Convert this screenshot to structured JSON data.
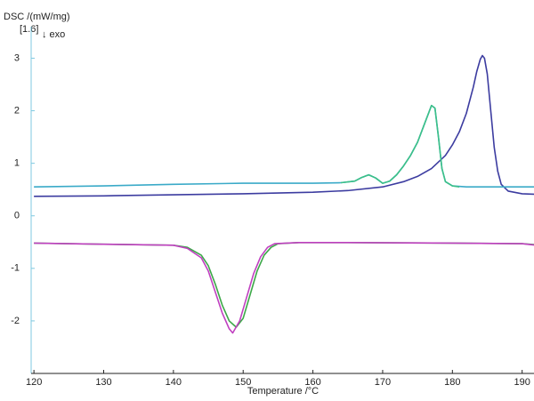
{
  "chart_data": {
    "type": "line",
    "y_label": "DSC /(mW/mg)",
    "x_label": "Temperature /°C",
    "annotations": [
      "[1.6]",
      "↓ exo"
    ],
    "xlim": [
      119.6,
      191.7
    ],
    "ylim": [
      -3,
      3.6
    ],
    "xticks": [
      120,
      130,
      140,
      150,
      160,
      170,
      180,
      190
    ],
    "yticks": [
      -2,
      -1,
      0,
      1,
      2,
      3
    ],
    "series": [
      {
        "color": "#3c3ca0",
        "x": [
          120,
          130,
          140,
          150,
          160,
          165,
          170,
          173,
          175,
          177,
          179,
          180,
          181,
          182,
          183,
          183.5,
          184,
          184.3,
          184.6,
          185,
          185.5,
          186,
          186.5,
          187,
          188,
          190,
          192
        ],
        "values": [
          0.37,
          0.38,
          0.4,
          0.42,
          0.45,
          0.48,
          0.55,
          0.65,
          0.75,
          0.9,
          1.15,
          1.35,
          1.6,
          1.95,
          2.45,
          2.75,
          2.98,
          3.05,
          3.0,
          2.7,
          2.0,
          1.3,
          0.85,
          0.6,
          0.47,
          0.42,
          0.41
        ]
      },
      {
        "color": "#3aaac8",
        "x": [
          120,
          130,
          140,
          150,
          160,
          164,
          166,
          167,
          168,
          169,
          170,
          171,
          172,
          173,
          174,
          175,
          176,
          177,
          177.5,
          178,
          178.5,
          179,
          180,
          182,
          192
        ],
        "values": [
          0.55,
          0.57,
          0.6,
          0.62,
          0.62,
          0.63,
          0.66,
          0.73,
          0.78,
          0.72,
          0.62,
          0.66,
          0.78,
          0.95,
          1.15,
          1.4,
          1.75,
          2.1,
          2.05,
          1.5,
          0.9,
          0.65,
          0.57,
          0.55,
          0.55
        ]
      },
      {
        "color": "#3cc088",
        "x": [
          164,
          166,
          167,
          168,
          169,
          170,
          171,
          172,
          173,
          174,
          175,
          176,
          177,
          177.5,
          178,
          178.5,
          179,
          180,
          181
        ],
        "values": [
          0.63,
          0.66,
          0.73,
          0.78,
          0.72,
          0.62,
          0.66,
          0.78,
          0.95,
          1.15,
          1.4,
          1.75,
          2.1,
          2.05,
          1.5,
          0.9,
          0.65,
          0.57,
          0.55
        ]
      },
      {
        "color": "#3ca848",
        "x": [
          120,
          130,
          140,
          142,
          144,
          145,
          146,
          147,
          148,
          149,
          150,
          151,
          152,
          153,
          154,
          155,
          158,
          165,
          180,
          190,
          192
        ],
        "values": [
          -0.52,
          -0.54,
          -0.56,
          -0.6,
          -0.75,
          -0.95,
          -1.3,
          -1.7,
          -2.0,
          -2.12,
          -1.95,
          -1.5,
          -1.05,
          -0.75,
          -0.6,
          -0.53,
          -0.51,
          -0.51,
          -0.52,
          -0.53,
          -0.55
        ]
      },
      {
        "color": "#c040c0",
        "x": [
          120,
          130,
          140,
          142,
          144,
          145,
          146,
          147,
          148,
          148.5,
          149.5,
          150.5,
          151.5,
          152.5,
          153.5,
          154.5,
          158,
          165,
          180,
          190,
          192
        ],
        "values": [
          -0.52,
          -0.54,
          -0.56,
          -0.62,
          -0.8,
          -1.05,
          -1.45,
          -1.85,
          -2.15,
          -2.23,
          -2.0,
          -1.55,
          -1.1,
          -0.78,
          -0.6,
          -0.53,
          -0.51,
          -0.51,
          -0.52,
          -0.53,
          -0.56
        ]
      }
    ]
  }
}
